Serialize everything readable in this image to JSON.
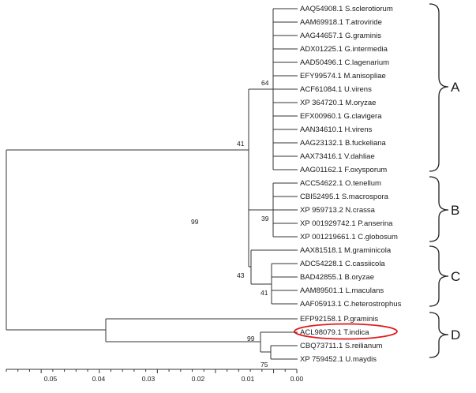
{
  "tree": {
    "leaves": [
      "AAQ54908.1 S.sclerotiorum",
      "AAM69918.1 T.atroviride",
      "AAG44657.1 G.graminis",
      "ADX01225.1 G.intermedia",
      "AAD50496.1 C.lagenarium",
      "EFY99574.1 M.anisopliae",
      "ACF61084.1 U.virens",
      "XP 364720.1 M.oryzae",
      "EFX00960.1 G.clavigera",
      "AAN34610.1 H.virens",
      "AAG23132.1 B.fuckeliana",
      "AAX73416.1 V.dahliae",
      "AAG01162.1 F.oxysporum",
      "ACC54622.1 O.tenellum",
      "CBI52495.1 S.macrospora",
      "XP 959713.2 N.crassa",
      "XP 001929742.1 P.anserina",
      "XP 001219661.1 C.globosum",
      "AAX81518.1 M.graminicola",
      "ADC54228.1 C.cassiicola",
      "BAD42855.1 B.oryzae",
      "AAM89501.1 L.maculans",
      "AAF05913.1 C.heterostrophus",
      "EFP92158.1 P.graminis",
      "ACL98079.1 T.indica",
      "CBQ73711.1 S.reilianum",
      "XP 759452.1 U.maydis"
    ],
    "highlighted_leaf": "ACL98079.1 T.indica",
    "highlight_color": "#e0191b",
    "bootstrap": [
      "64",
      "41",
      "39",
      "99",
      "43",
      "41",
      "99",
      "75"
    ],
    "groups": [
      "A",
      "B",
      "C",
      "D"
    ]
  },
  "scale_axis": {
    "ticks": [
      "0.05",
      "0.04",
      "0.03",
      "0.02",
      "0.01",
      "0.00"
    ]
  }
}
